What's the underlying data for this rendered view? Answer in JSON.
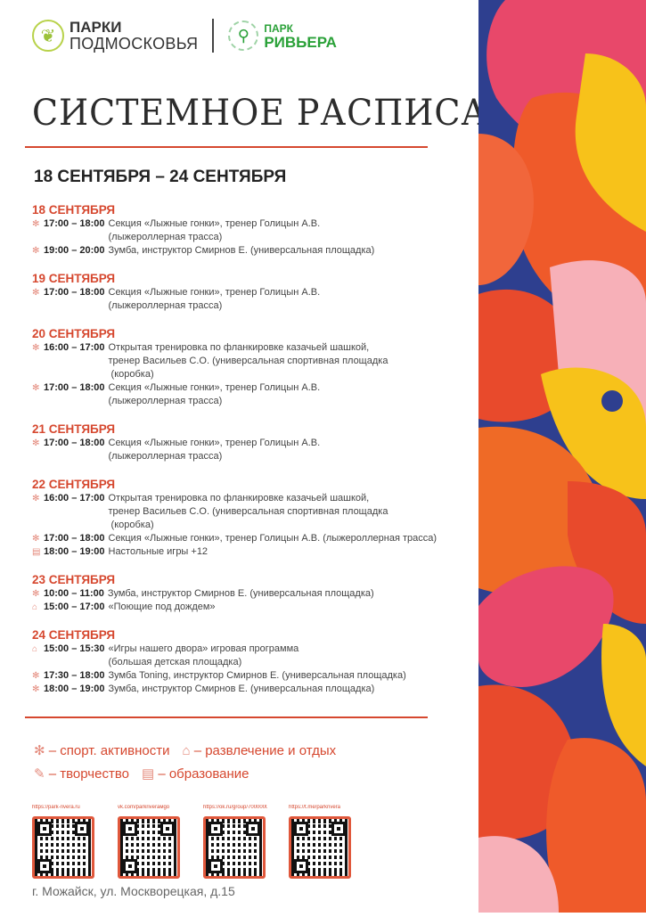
{
  "logos": {
    "parki_top": "ПАРКИ",
    "parki_bottom": "ПОДМОСКОВЬЯ",
    "park_top": "ПАРК",
    "park_bottom": "РИВЬЕРА"
  },
  "title": "СИСТЕМНОЕ РАСПИСАНИЕ",
  "date_range": "18 СЕНТЯБРЯ – 24 СЕНТЯБРЯ",
  "days": [
    {
      "date": "18 СЕНТЯБРЯ",
      "events": [
        {
          "icon": "sport-icon",
          "time": "17:00 – 18:00",
          "text": "Секция «Лыжные гонки», тренер Голицын А.В.",
          "text2": "(лыжероллерная трасса)"
        },
        {
          "icon": "sport-icon",
          "time": "19:00 – 20:00",
          "text": "Зумба, инструктор Смирнов Е. (универсальная площадка)"
        }
      ]
    },
    {
      "date": "19 СЕНТЯБРЯ",
      "events": [
        {
          "icon": "sport-icon",
          "time": "17:00 – 18:00",
          "text": "Секция «Лыжные гонки», тренер Голицын А.В.",
          "text2": "(лыжероллерная трасса)"
        }
      ]
    },
    {
      "date": "20 СЕНТЯБРЯ",
      "events": [
        {
          "icon": "sport-icon",
          "time": "16:00 – 17:00",
          "text": "Открытая тренировка по фланкировке казачьей шашкой,",
          "text2": "тренер Васильев С.О. (универсальная спортивная площадка",
          "text3": " (коробка)"
        },
        {
          "icon": "sport-icon",
          "time": "17:00 – 18:00",
          "text": "Секция «Лыжные гонки», тренер Голицын А.В.",
          "text2": "(лыжероллерная трасса)"
        }
      ]
    },
    {
      "date": "21 СЕНТЯБРЯ",
      "events": [
        {
          "icon": "sport-icon",
          "time": "17:00 – 18:00",
          "text": "Секция «Лыжные гонки», тренер Голицын А.В.",
          "text2": "(лыжероллерная трасса)"
        }
      ]
    },
    {
      "date": "22 СЕНТЯБРЯ",
      "events": [
        {
          "icon": "sport-icon",
          "time": "16:00 – 17:00",
          "text": "Открытая тренировка по фланкировке казачьей шашкой,",
          "text2": "тренер Васильев С.О. (универсальная спортивная площадка",
          "text3": " (коробка)"
        },
        {
          "icon": "sport-icon",
          "time": "17:00 – 18:00",
          "text": "Секция «Лыжные гонки», тренер Голицын А.В. (лыжероллерная трасса)"
        },
        {
          "icon": "education-icon",
          "time": "18:00 – 19:00",
          "text": "Настольные игры +12"
        }
      ]
    },
    {
      "date": "23 СЕНТЯБРЯ",
      "events": [
        {
          "icon": "sport-icon",
          "time": "10:00 – 11:00",
          "text": "Зумба, инструктор Смирнов Е. (универсальная площадка)"
        },
        {
          "icon": "entertainment-icon",
          "time": "15:00 – 17:00",
          "text": "«Поющие под дождем»"
        }
      ]
    },
    {
      "date": "24 СЕНТЯБРЯ",
      "events": [
        {
          "icon": "entertainment-icon",
          "time": "15:00 – 15:30",
          "text": "«Игры нашего двора» игровая программа",
          "text2": "(большая детская площадка)"
        },
        {
          "icon": "sport-icon",
          "time": "17:30 – 18:00",
          "text": "Зумба Toning, инструктор Смирнов Е. (универсальная площадка)"
        },
        {
          "icon": "sport-icon",
          "time": "18:00 – 19:00",
          "text": "Зумба, инструктор Смирнов Е. (универсальная площадка)"
        }
      ]
    }
  ],
  "legend": [
    {
      "icon": "sport-icon",
      "label": "– спорт. активности"
    },
    {
      "icon": "entertainment-icon",
      "label": "– развлечение и отдых"
    },
    {
      "icon": "creativity-icon",
      "label": "– творчество"
    },
    {
      "icon": "education-icon",
      "label": "– образование"
    }
  ],
  "qr_links": [
    "https://park-rivera.ru",
    "vk.com/parkriverамgo",
    "https://ok.ru/group/70000000000000",
    "https://t.me/parkrivera"
  ],
  "address": "г. Можайск, ул. Москворецкая, д.15",
  "colors": {
    "accent": "#d6482f",
    "green": "#2aa138",
    "decor_blue": "#2e3f8f"
  }
}
